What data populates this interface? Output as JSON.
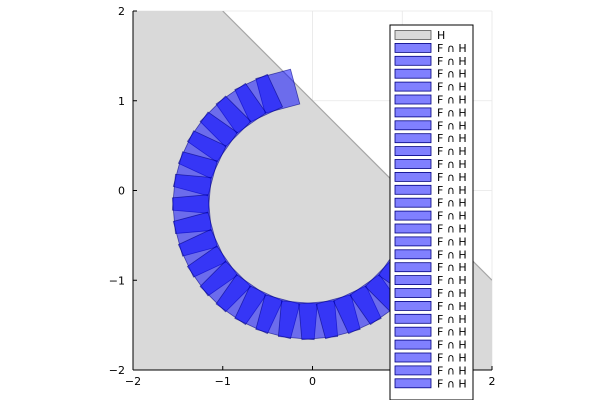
{
  "chart_data": {
    "type": "area",
    "title": "",
    "xlabel": "",
    "ylabel": "",
    "xlim": [
      -2,
      2
    ],
    "ylim": [
      -2,
      2
    ],
    "x_ticks": [
      "−2",
      "−1",
      "0",
      "1",
      "2"
    ],
    "y_ticks": [
      "−2",
      "−1",
      "0",
      "1",
      "2"
    ],
    "grid": true,
    "legend_placement": "top-right",
    "colors": {
      "halfspace_fill": "#d9d9d9",
      "halfspace_edge": "#a6a6a6",
      "square_fill": "#0000ff",
      "square_alpha": 0.5,
      "square_edge": "#000080"
    },
    "halfspace": {
      "name": "H",
      "constraint": "x + y <= 1"
    },
    "squares": {
      "name": "F ∩ H",
      "count": 29,
      "half_width": 0.2,
      "path_center": [
        -0.05,
        -0.15
      ],
      "path_radius": 1.3,
      "start_angle_deg": 105,
      "end_angle_deg": 385
    },
    "legend": [
      "H",
      "F ∩ H",
      "F ∩ H",
      "F ∩ H",
      "F ∩ H",
      "F ∩ H",
      "F ∩ H",
      "F ∩ H",
      "F ∩ H",
      "F ∩ H",
      "F ∩ H",
      "F ∩ H",
      "F ∩ H",
      "F ∩ H",
      "F ∩ H",
      "F ∩ H",
      "F ∩ H",
      "F ∩ H",
      "F ∩ H",
      "F ∩ H",
      "F ∩ H",
      "F ∩ H",
      "F ∩ H",
      "F ∩ H",
      "F ∩ H",
      "F ∩ H",
      "F ∩ H",
      "F ∩ H",
      "F ∩ H",
      "F ∩ H"
    ]
  }
}
